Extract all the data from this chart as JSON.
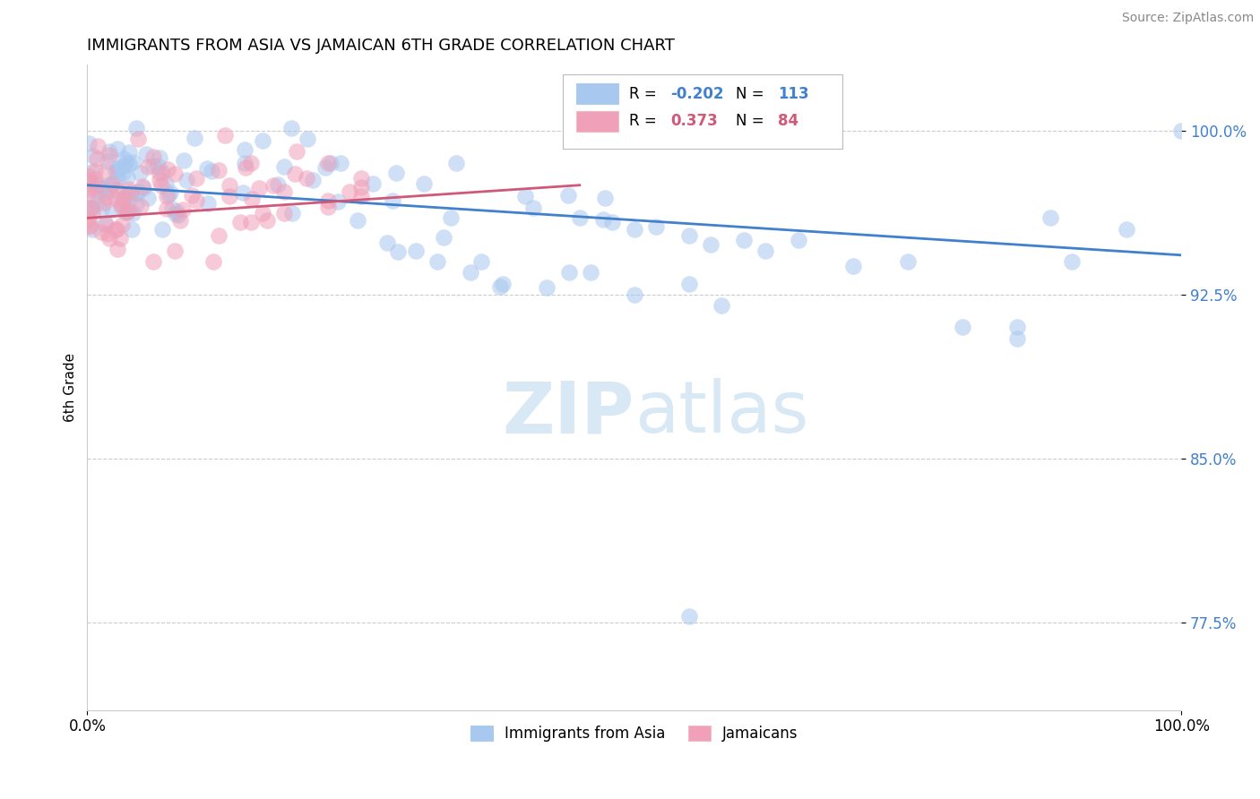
{
  "title": "IMMIGRANTS FROM ASIA VS JAMAICAN 6TH GRADE CORRELATION CHART",
  "source_text": "Source: ZipAtlas.com",
  "ylabel": "6th Grade",
  "xlim": [
    0.0,
    1.0
  ],
  "ylim": [
    0.735,
    1.03
  ],
  "yticks": [
    0.775,
    0.85,
    0.925,
    1.0
  ],
  "ytick_labels": [
    "77.5%",
    "85.0%",
    "92.5%",
    "100.0%"
  ],
  "xticks": [
    0.0,
    1.0
  ],
  "xtick_labels": [
    "0.0%",
    "100.0%"
  ],
  "legend_blue_r": "-0.202",
  "legend_blue_n": "113",
  "legend_pink_r": "0.373",
  "legend_pink_n": "84",
  "blue_color": "#A8C8F0",
  "pink_color": "#F0A0B8",
  "blue_line_color": "#4080CC",
  "pink_line_color": "#D05878",
  "watermark_color": "#D8E8F4",
  "background_color": "#FFFFFF",
  "grid_color": "#CCCCCC",
  "blue_trend_x0": 0.0,
  "blue_trend_y0": 0.975,
  "blue_trend_x1": 1.0,
  "blue_trend_y1": 0.943,
  "pink_trend_x0": 0.0,
  "pink_trend_y0": 0.96,
  "pink_trend_x1": 0.45,
  "pink_trend_y1": 0.975
}
